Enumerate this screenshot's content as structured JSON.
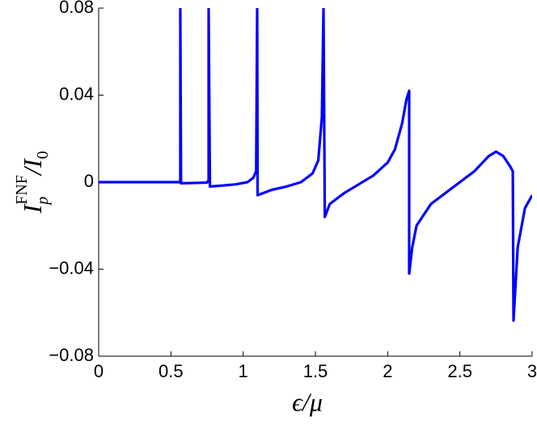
{
  "chart_data": {
    "type": "line",
    "xlabel": "ϵ/μ",
    "ylabel": {
      "main": "I",
      "sub": "p",
      "sup": "FNF",
      "slash": "/I",
      "sub0": "0"
    },
    "x": [
      0,
      0.3,
      0.565,
      0.565,
      0.57,
      0.65,
      0.75,
      0.761,
      0.761,
      0.77,
      0.85,
      0.95,
      1.03,
      1.07,
      1.09,
      1.097,
      1.097,
      1.1,
      1.2,
      1.3,
      1.4,
      1.48,
      1.52,
      1.545,
      1.556,
      1.556,
      1.565,
      1.6,
      1.7,
      1.8,
      1.9,
      2.0,
      2.05,
      2.1,
      2.13,
      2.149,
      2.149,
      2.17,
      2.2,
      2.3,
      2.4,
      2.5,
      2.6,
      2.7,
      2.75,
      2.8,
      2.85,
      2.866,
      2.871,
      2.9,
      2.95,
      3.0
    ],
    "values": [
      0,
      0,
      0,
      0.08,
      -0.0005,
      -0.0004,
      -0.0002,
      0.001,
      0.08,
      -0.002,
      -0.0016,
      -0.001,
      0,
      0.002,
      0.005,
      0.08,
      0.08,
      -0.006,
      -0.0035,
      -0.002,
      0,
      0.004,
      0.01,
      0.03,
      0.08,
      0.08,
      -0.016,
      -0.01,
      -0.005,
      -0.001,
      0.003,
      0.009,
      0.015,
      0.027,
      0.038,
      0.042,
      -0.042,
      -0.03,
      -0.02,
      -0.01,
      -0.005,
      0,
      0.005,
      0.012,
      0.014,
      0.012,
      0.007,
      0.005,
      -0.0636,
      -0.03,
      -0.012,
      -0.006
    ],
    "color": "#0000ff",
    "xlim": [
      0,
      3
    ],
    "xticks": [
      0,
      0.5,
      1,
      1.5,
      2,
      2.5,
      3
    ],
    "ylim": [
      -0.08,
      0.08
    ],
    "yticks": [
      {
        "value": -0.08,
        "label": "−0.08"
      },
      {
        "value": -0.04,
        "label": "−0.04"
      },
      0,
      0.04,
      0.08
    ]
  }
}
